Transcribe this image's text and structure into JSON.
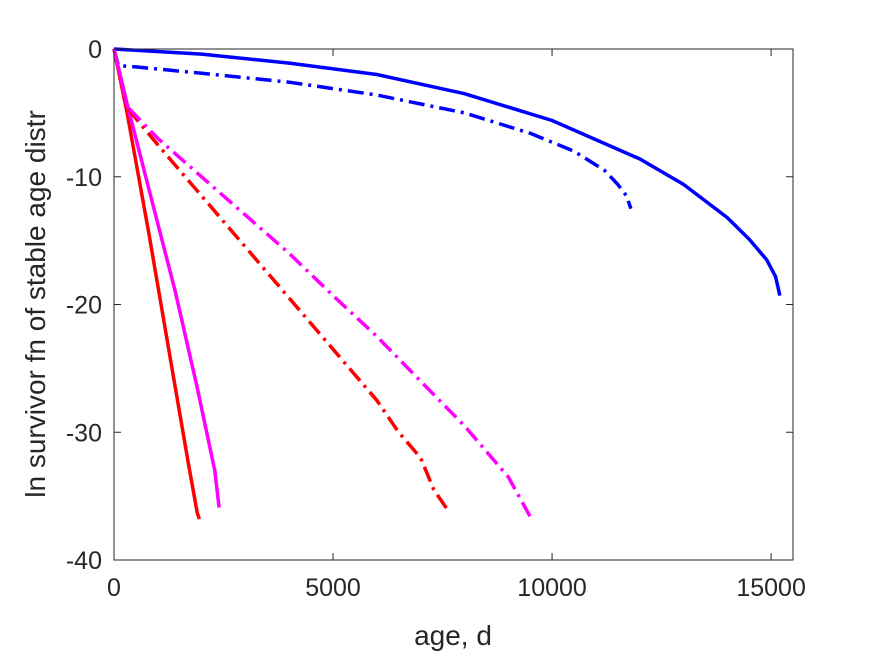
{
  "chart_data": {
    "type": "line",
    "title": "",
    "xlabel": "age, d",
    "ylabel": "ln survivor fn of stable age distr",
    "xlim": [
      0,
      15500
    ],
    "ylim": [
      -40,
      0
    ],
    "xticks": [
      0,
      5000,
      10000,
      15000
    ],
    "yticks": [
      -40,
      -30,
      -20,
      -10,
      0
    ],
    "xtick_labels": [
      "0",
      "5000",
      "10000",
      "15000"
    ],
    "ytick_labels": [
      "-40",
      "-30",
      "-20",
      "-10",
      "0"
    ],
    "grid": false,
    "legend": "none",
    "series": [
      {
        "color": "#0000ff",
        "style": "solid",
        "x": [
          0,
          2000,
          4000,
          6000,
          8000,
          10000,
          12000,
          13000,
          14000,
          14500,
          14900,
          15100,
          15200
        ],
        "y": [
          0,
          -0.4,
          -1.1,
          -2.0,
          -3.5,
          -5.6,
          -8.6,
          -10.6,
          -13.2,
          -14.9,
          -16.5,
          -17.8,
          -19.3
        ]
      },
      {
        "color": "#0000ff",
        "style": "dashdot",
        "x": [
          0,
          100,
          500,
          2000,
          4000,
          6000,
          8000,
          9500,
          10500,
          11200,
          11500,
          11700,
          11800
        ],
        "y": [
          0,
          -1.3,
          -1.4,
          -1.9,
          -2.6,
          -3.6,
          -5.0,
          -6.6,
          -8.0,
          -9.5,
          -10.6,
          -11.5,
          -12.5
        ]
      },
      {
        "color": "#ff0000",
        "style": "solid",
        "x": [
          0,
          300,
          800,
          1300,
          1700,
          1900,
          1950
        ],
        "y": [
          0,
          -5.0,
          -14.5,
          -24.5,
          -32.5,
          -36.3,
          -36.8
        ]
      },
      {
        "color": "#ff00ff",
        "style": "solid",
        "x": [
          0,
          300,
          800,
          1400,
          1900,
          2300,
          2400
        ],
        "y": [
          0,
          -4.3,
          -11.0,
          -19.0,
          -26.5,
          -33.0,
          -35.9
        ]
      },
      {
        "color": "#ff0000",
        "style": "dashdot",
        "x": [
          0,
          300,
          1000,
          2000,
          3000,
          4000,
          5000,
          6000,
          6500,
          7000,
          7300,
          7600
        ],
        "y": [
          0,
          -4.6,
          -7.5,
          -11.5,
          -15.5,
          -19.5,
          -23.5,
          -27.5,
          -30.0,
          -32.0,
          -34.5,
          -36.0
        ]
      },
      {
        "color": "#ff00ff",
        "style": "dashdot",
        "x": [
          0,
          300,
          1000,
          2000,
          3000,
          4000,
          5000,
          6000,
          7000,
          8000,
          9000,
          9500
        ],
        "y": [
          0,
          -4.5,
          -7.0,
          -10.0,
          -13.0,
          -16.0,
          -19.3,
          -22.5,
          -26.0,
          -29.5,
          -33.5,
          -36.6
        ]
      }
    ]
  }
}
